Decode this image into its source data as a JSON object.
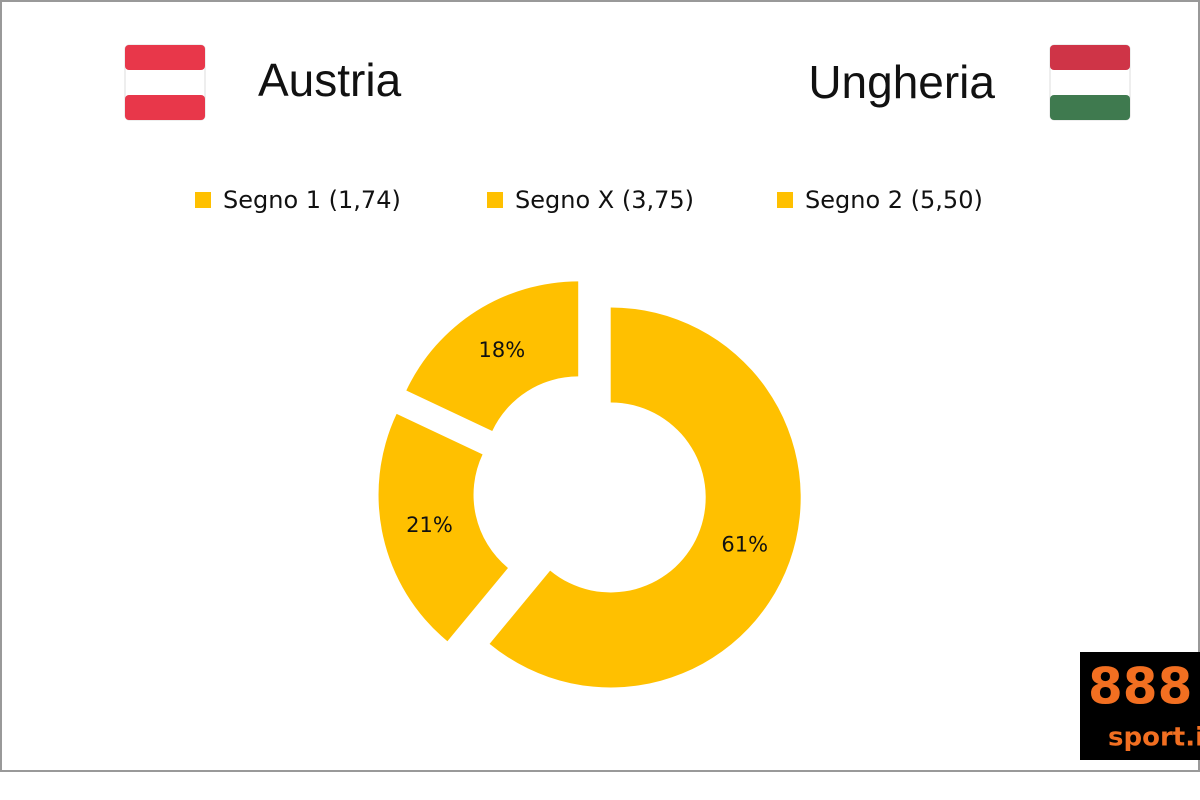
{
  "header": {
    "home": "Austria",
    "away": "Ungheria"
  },
  "logo": {
    "brand": "888",
    "site": "sport.it"
  },
  "chart_data": {
    "type": "donut",
    "categories": [
      "Segno 1 (1,74)",
      "Segno X (3,75)",
      "Segno 2 (5,50)"
    ],
    "values": [
      61,
      21,
      18
    ],
    "value_labels": [
      "61%",
      "21%",
      "18%"
    ],
    "color": "#ffc000",
    "legend": "top"
  }
}
